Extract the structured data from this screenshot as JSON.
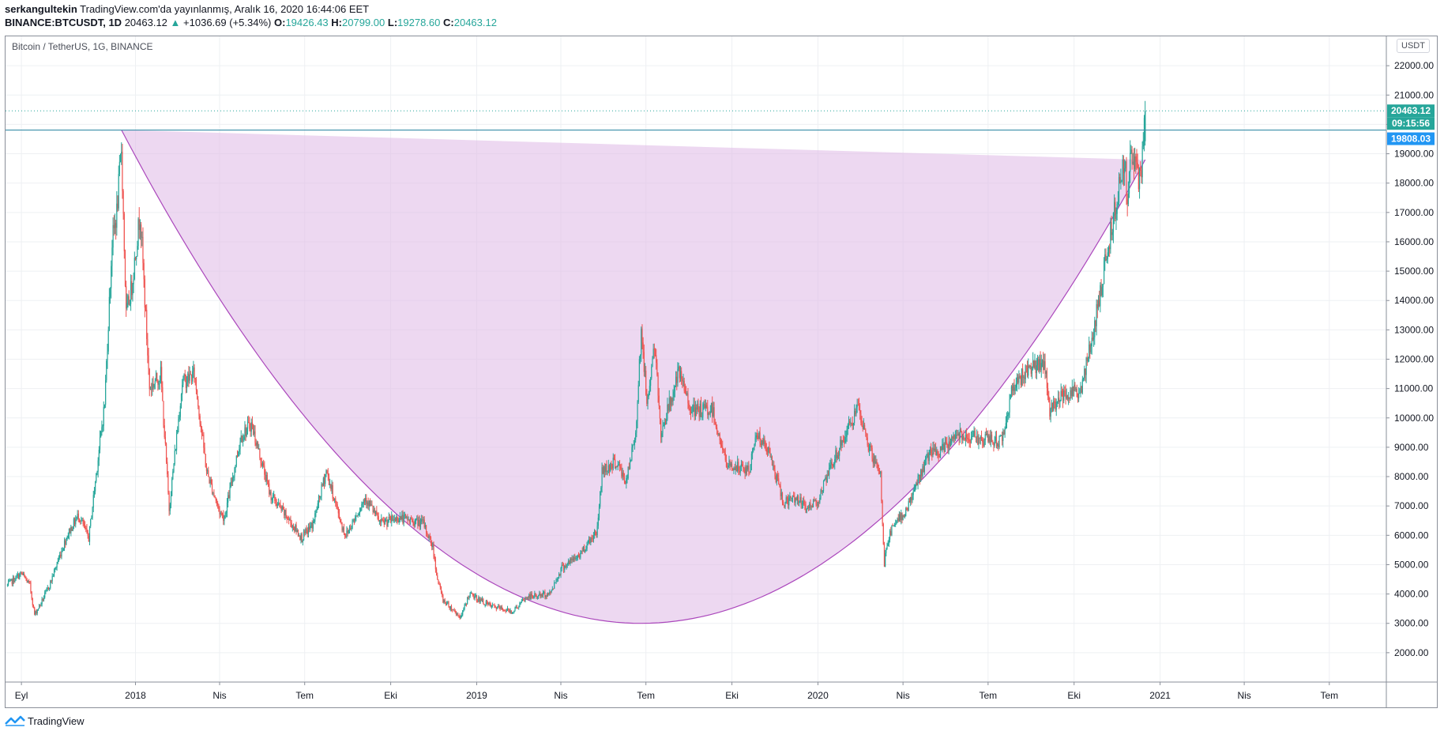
{
  "header": {
    "author": "serkangultekin",
    "published": "TradingView.com'da yayınlanmış, Aralık 16, 2020 16:44:06 EET",
    "symbol": "BINANCE:BTCUSDT, 1D",
    "last": "20463.12",
    "change": "+1036.69 (+5.34%)",
    "o_label": "O:",
    "o": "19426.43",
    "h_label": "H:",
    "h": "20799.00",
    "l_label": "L:",
    "l": "19278.60",
    "c_label": "C:",
    "c": "20463.12"
  },
  "chart_title": "Bitcoin / TetherUS, 1G, BINANCE",
  "price_unit": "USDT",
  "watermark": "TradingView",
  "colors": {
    "up": "#26a69a",
    "down": "#ef5350",
    "shape_fill": "#e1bee7",
    "shape_stroke": "#ab47bc",
    "hline": "#2196f3"
  },
  "chart_data": {
    "type": "candlestick",
    "x_range": [
      "2017-08-15",
      "2021-08-31"
    ],
    "ylim": [
      1000,
      23000
    ],
    "y_ticks": [
      "22000.00",
      "21000.00",
      "20000.00",
      "19000.00",
      "18000.00",
      "17000.00",
      "16000.00",
      "15000.00",
      "14000.00",
      "13000.00",
      "12000.00",
      "11000.00",
      "10000.00",
      "9000.00",
      "8000.00",
      "7000.00",
      "6000.00",
      "5000.00",
      "4000.00",
      "3000.00",
      "2000.00"
    ],
    "x_ticks": [
      {
        "date": "2017-09-01",
        "label": "Eyl"
      },
      {
        "date": "2018-01-01",
        "label": "2018"
      },
      {
        "date": "2018-04-01",
        "label": "Nis"
      },
      {
        "date": "2018-07-01",
        "label": "Tem"
      },
      {
        "date": "2018-10-01",
        "label": "Eki"
      },
      {
        "date": "2019-01-01",
        "label": "2019"
      },
      {
        "date": "2019-04-01",
        "label": "Nis"
      },
      {
        "date": "2019-07-01",
        "label": "Tem"
      },
      {
        "date": "2019-10-01",
        "label": "Eki"
      },
      {
        "date": "2020-01-01",
        "label": "2020"
      },
      {
        "date": "2020-04-01",
        "label": "Nis"
      },
      {
        "date": "2020-07-01",
        "label": "Tem"
      },
      {
        "date": "2020-10-01",
        "label": "Eki"
      },
      {
        "date": "2021-01-01",
        "label": "2021"
      },
      {
        "date": "2021-04-01",
        "label": "Nis"
      },
      {
        "date": "2021-07-01",
        "label": "Tem"
      }
    ],
    "close_path": [
      {
        "date": "2017-08-17",
        "close": 4300
      },
      {
        "date": "2017-08-28",
        "close": 4600
      },
      {
        "date": "2017-09-01",
        "close": 4700
      },
      {
        "date": "2017-09-10",
        "close": 4300
      },
      {
        "date": "2017-09-15",
        "close": 3300
      },
      {
        "date": "2017-09-22",
        "close": 3700
      },
      {
        "date": "2017-10-01",
        "close": 4300
      },
      {
        "date": "2017-10-13",
        "close": 5400
      },
      {
        "date": "2017-10-20",
        "close": 6000
      },
      {
        "date": "2017-11-01",
        "close": 6700
      },
      {
        "date": "2017-11-12",
        "close": 5900
      },
      {
        "date": "2017-11-20",
        "close": 8100
      },
      {
        "date": "2017-11-29",
        "close": 10500
      },
      {
        "date": "2017-12-07",
        "close": 16000
      },
      {
        "date": "2017-12-12",
        "close": 17000
      },
      {
        "date": "2017-12-17",
        "close": 19200
      },
      {
        "date": "2017-12-22",
        "close": 13500
      },
      {
        "date": "2017-12-28",
        "close": 14500
      },
      {
        "date": "2018-01-06",
        "close": 17000
      },
      {
        "date": "2018-01-16",
        "close": 11000
      },
      {
        "date": "2018-01-28",
        "close": 11500
      },
      {
        "date": "2018-02-06",
        "close": 6900
      },
      {
        "date": "2018-02-20",
        "close": 11200
      },
      {
        "date": "2018-03-05",
        "close": 11500
      },
      {
        "date": "2018-03-18",
        "close": 8200
      },
      {
        "date": "2018-04-01",
        "close": 6800
      },
      {
        "date": "2018-04-06",
        "close": 6600
      },
      {
        "date": "2018-04-24",
        "close": 9400
      },
      {
        "date": "2018-05-05",
        "close": 9800
      },
      {
        "date": "2018-05-25",
        "close": 7400
      },
      {
        "date": "2018-06-10",
        "close": 6700
      },
      {
        "date": "2018-06-28",
        "close": 5900
      },
      {
        "date": "2018-07-10",
        "close": 6400
      },
      {
        "date": "2018-07-24",
        "close": 8200
      },
      {
        "date": "2018-08-10",
        "close": 6300
      },
      {
        "date": "2018-08-14",
        "close": 6000
      },
      {
        "date": "2018-09-04",
        "close": 7300
      },
      {
        "date": "2018-09-20",
        "close": 6400
      },
      {
        "date": "2018-10-10",
        "close": 6600
      },
      {
        "date": "2018-11-05",
        "close": 6400
      },
      {
        "date": "2018-11-15",
        "close": 5600
      },
      {
        "date": "2018-11-20",
        "close": 4500
      },
      {
        "date": "2018-11-26",
        "close": 3800
      },
      {
        "date": "2018-12-15",
        "close": 3200
      },
      {
        "date": "2018-12-24",
        "close": 4000
      },
      {
        "date": "2019-01-15",
        "close": 3600
      },
      {
        "date": "2019-02-08",
        "close": 3400
      },
      {
        "date": "2019-02-24",
        "close": 3900
      },
      {
        "date": "2019-03-20",
        "close": 4000
      },
      {
        "date": "2019-04-02",
        "close": 4900
      },
      {
        "date": "2019-04-20",
        "close": 5300
      },
      {
        "date": "2019-05-10",
        "close": 6200
      },
      {
        "date": "2019-05-15",
        "close": 8200
      },
      {
        "date": "2019-05-30",
        "close": 8500
      },
      {
        "date": "2019-06-10",
        "close": 7800
      },
      {
        "date": "2019-06-20",
        "close": 9500
      },
      {
        "date": "2019-06-26",
        "close": 13000
      },
      {
        "date": "2019-07-02",
        "close": 10500
      },
      {
        "date": "2019-07-10",
        "close": 12500
      },
      {
        "date": "2019-07-17",
        "close": 9500
      },
      {
        "date": "2019-08-05",
        "close": 11500
      },
      {
        "date": "2019-08-20",
        "close": 10200
      },
      {
        "date": "2019-09-10",
        "close": 10300
      },
      {
        "date": "2019-09-25",
        "close": 8400
      },
      {
        "date": "2019-10-20",
        "close": 8200
      },
      {
        "date": "2019-10-26",
        "close": 9500
      },
      {
        "date": "2019-11-10",
        "close": 8800
      },
      {
        "date": "2019-11-25",
        "close": 7100
      },
      {
        "date": "2019-12-10",
        "close": 7300
      },
      {
        "date": "2019-12-18",
        "close": 6900
      },
      {
        "date": "2020-01-01",
        "close": 7200
      },
      {
        "date": "2020-01-20",
        "close": 8700
      },
      {
        "date": "2020-02-12",
        "close": 10300
      },
      {
        "date": "2020-02-28",
        "close": 8700
      },
      {
        "date": "2020-03-08",
        "close": 8000
      },
      {
        "date": "2020-03-12",
        "close": 4900
      },
      {
        "date": "2020-03-13",
        "close": 5500
      },
      {
        "date": "2020-03-20",
        "close": 6200
      },
      {
        "date": "2020-04-05",
        "close": 6900
      },
      {
        "date": "2020-04-29",
        "close": 8800
      },
      {
        "date": "2020-05-10",
        "close": 8800
      },
      {
        "date": "2020-05-30",
        "close": 9500
      },
      {
        "date": "2020-06-20",
        "close": 9300
      },
      {
        "date": "2020-07-15",
        "close": 9200
      },
      {
        "date": "2020-07-27",
        "close": 11000
      },
      {
        "date": "2020-08-15",
        "close": 11800
      },
      {
        "date": "2020-08-31",
        "close": 11700
      },
      {
        "date": "2020-09-05",
        "close": 10200
      },
      {
        "date": "2020-09-20",
        "close": 10900
      },
      {
        "date": "2020-10-08",
        "close": 10900
      },
      {
        "date": "2020-10-21",
        "close": 12800
      },
      {
        "date": "2020-11-05",
        "close": 15600
      },
      {
        "date": "2020-11-17",
        "close": 17700
      },
      {
        "date": "2020-11-25",
        "close": 19100
      },
      {
        "date": "2020-11-26",
        "close": 17100
      },
      {
        "date": "2020-12-01",
        "close": 19000
      },
      {
        "date": "2020-12-11",
        "close": 18000
      },
      {
        "date": "2020-12-16",
        "close": 20463
      }
    ],
    "cup_shape": {
      "start": {
        "date": "2017-12-17",
        "price": 19808
      },
      "bottom": {
        "date": "2019-06-26",
        "price": 3000
      },
      "end": {
        "date": "2020-12-16",
        "price": 19808
      }
    },
    "horizontal_line": {
      "price": 19808.03,
      "label": "19808.03"
    },
    "last_price": {
      "price": 20463.12,
      "label": "20463.12",
      "countdown": "09:15:56"
    }
  }
}
